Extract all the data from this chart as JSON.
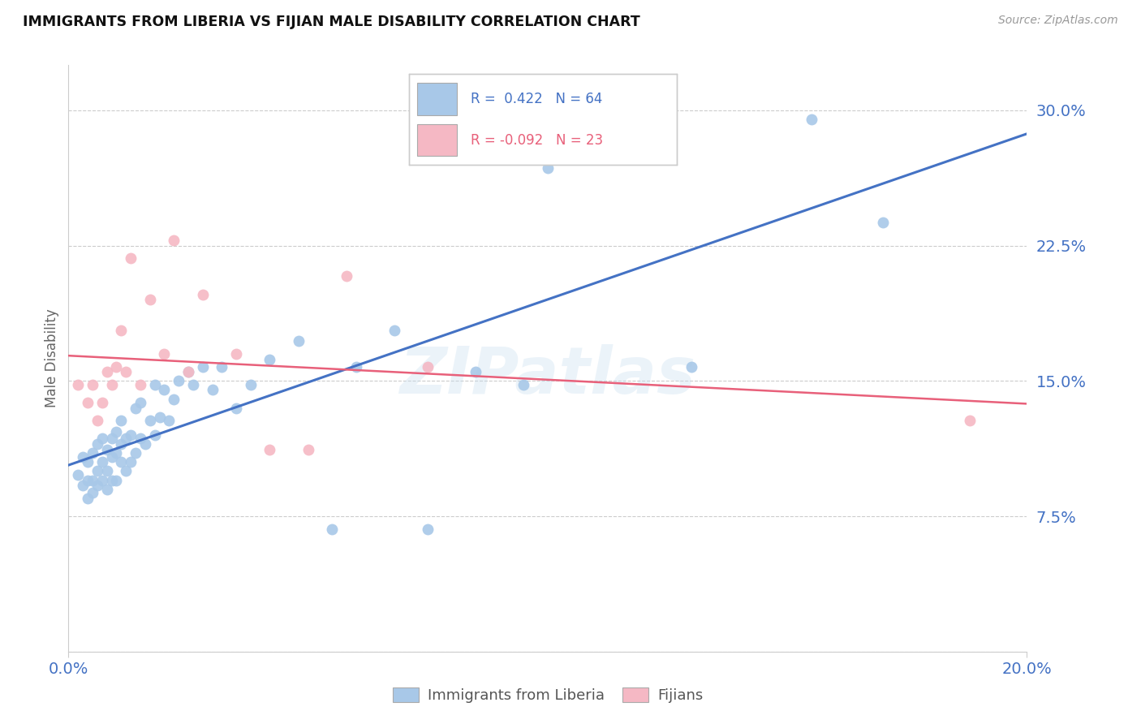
{
  "title": "IMMIGRANTS FROM LIBERIA VS FIJIAN MALE DISABILITY CORRELATION CHART",
  "source": "Source: ZipAtlas.com",
  "ylabel": "Male Disability",
  "xlim": [
    0.0,
    0.2
  ],
  "ylim": [
    0.0,
    0.325
  ],
  "yticks": [
    0.0,
    0.075,
    0.15,
    0.225,
    0.3
  ],
  "ytick_labels": [
    "",
    "7.5%",
    "15.0%",
    "22.5%",
    "30.0%"
  ],
  "xtick_labels": [
    "0.0%",
    "20.0%"
  ],
  "legend_label1": "Immigrants from Liberia",
  "legend_label2": "Fijians",
  "color_blue": "#a8c8e8",
  "color_pink": "#f5b8c4",
  "color_blue_line": "#4472c4",
  "color_pink_line": "#e8607a",
  "color_text_blue": "#4472c4",
  "color_text_pink": "#e8607a",
  "color_axis": "#4472c4",
  "blue_scatter_x": [
    0.002,
    0.003,
    0.003,
    0.004,
    0.004,
    0.004,
    0.005,
    0.005,
    0.005,
    0.006,
    0.006,
    0.006,
    0.007,
    0.007,
    0.007,
    0.008,
    0.008,
    0.008,
    0.009,
    0.009,
    0.009,
    0.01,
    0.01,
    0.01,
    0.011,
    0.011,
    0.011,
    0.012,
    0.012,
    0.013,
    0.013,
    0.014,
    0.014,
    0.015,
    0.015,
    0.016,
    0.017,
    0.018,
    0.018,
    0.019,
    0.02,
    0.021,
    0.022,
    0.023,
    0.025,
    0.026,
    0.028,
    0.03,
    0.032,
    0.035,
    0.038,
    0.042,
    0.048,
    0.055,
    0.06,
    0.068,
    0.075,
    0.085,
    0.095,
    0.1,
    0.11,
    0.13,
    0.155,
    0.17
  ],
  "blue_scatter_y": [
    0.098,
    0.092,
    0.108,
    0.085,
    0.095,
    0.105,
    0.088,
    0.095,
    0.11,
    0.092,
    0.1,
    0.115,
    0.095,
    0.105,
    0.118,
    0.09,
    0.1,
    0.112,
    0.095,
    0.108,
    0.118,
    0.095,
    0.11,
    0.122,
    0.105,
    0.115,
    0.128,
    0.1,
    0.118,
    0.105,
    0.12,
    0.11,
    0.135,
    0.118,
    0.138,
    0.115,
    0.128,
    0.12,
    0.148,
    0.13,
    0.145,
    0.128,
    0.14,
    0.15,
    0.155,
    0.148,
    0.158,
    0.145,
    0.158,
    0.135,
    0.148,
    0.162,
    0.172,
    0.068,
    0.158,
    0.178,
    0.068,
    0.155,
    0.148,
    0.268,
    0.275,
    0.158,
    0.295,
    0.238
  ],
  "pink_scatter_x": [
    0.002,
    0.004,
    0.005,
    0.006,
    0.007,
    0.008,
    0.009,
    0.01,
    0.011,
    0.012,
    0.013,
    0.015,
    0.017,
    0.02,
    0.022,
    0.025,
    0.028,
    0.035,
    0.042,
    0.05,
    0.058,
    0.075,
    0.188
  ],
  "pink_scatter_y": [
    0.148,
    0.138,
    0.148,
    0.128,
    0.138,
    0.155,
    0.148,
    0.158,
    0.178,
    0.155,
    0.218,
    0.148,
    0.195,
    0.165,
    0.228,
    0.155,
    0.198,
    0.165,
    0.112,
    0.112,
    0.208,
    0.158,
    0.128
  ]
}
